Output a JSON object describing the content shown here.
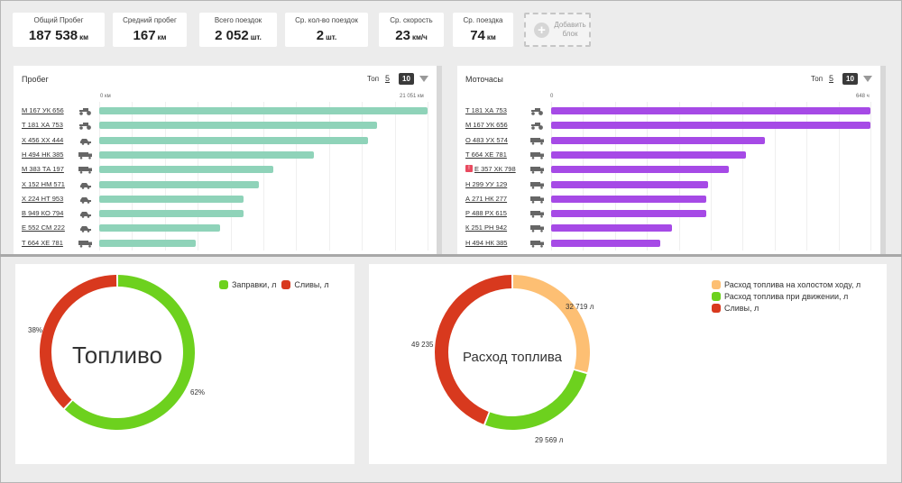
{
  "stats": [
    {
      "label": "Общий Пробег",
      "value": "187 538",
      "unit": "км"
    },
    {
      "label": "Средний пробег",
      "value": "167",
      "unit": "км"
    },
    {
      "label": "Всего поездок",
      "value": "2 052",
      "unit": "шт."
    },
    {
      "label": "Ср. кол-во поездок",
      "value": "2",
      "unit": "шт."
    },
    {
      "label": "Ср. скорость",
      "value": "23",
      "unit": "км/ч"
    },
    {
      "label": "Ср. поездка",
      "value": "74",
      "unit": "км"
    }
  ],
  "add_block": {
    "label_line1": "Добавить",
    "label_line2": "блок"
  },
  "mileage_panel": {
    "title": "Пробег",
    "top_label": "Топ",
    "top5": "5",
    "top10": "10",
    "axis_min": "0 км",
    "axis_max": "21 051 км",
    "bar_color": "#8fd3b9",
    "max": 21051,
    "rows": [
      {
        "plate": "М 167 УК 656",
        "icon": "tractor-icon",
        "value": 21051
      },
      {
        "plate": "Т 181 ХА 753",
        "icon": "tractor-icon",
        "value": 17800
      },
      {
        "plate": "Х 456 ХХ 444",
        "icon": "car-icon",
        "value": 17240
      },
      {
        "plate": "Н 494 НК 385",
        "icon": "truck-icon",
        "value": 13780
      },
      {
        "plate": "М 383 ТА 197",
        "icon": "truck-icon",
        "value": 11180
      },
      {
        "plate": "Х 152 НМ 571",
        "icon": "car-icon",
        "value": 10260
      },
      {
        "plate": "Х 224 НТ 953",
        "icon": "car-icon",
        "value": 9260
      },
      {
        "plate": "В 949 КО 794",
        "icon": "car-icon",
        "value": 9260
      },
      {
        "plate": "Е 552 СМ 222",
        "icon": "car-icon",
        "value": 7770
      },
      {
        "plate": "Т 664 ХЕ 781",
        "icon": "truck-icon",
        "value": 6200
      }
    ]
  },
  "moto_panel": {
    "title": "Моточасы",
    "top_label": "Топ",
    "top5": "5",
    "top10": "10",
    "axis_min": "0",
    "axis_max": "648 ч",
    "bar_color": "#a64ae6",
    "max": 648,
    "rows": [
      {
        "plate": "Т 181 ХА 753",
        "icon": "tractor-icon",
        "value": 648,
        "warn": false
      },
      {
        "plate": "М 167 УК 656",
        "icon": "tractor-icon",
        "value": 648,
        "warn": false
      },
      {
        "plate": "О 483 УХ 574",
        "icon": "truck-icon",
        "value": 434,
        "warn": false
      },
      {
        "plate": "Т 664 ХЕ 781",
        "icon": "truck-icon",
        "value": 396,
        "warn": false
      },
      {
        "plate": "Е 357 ХК 798",
        "icon": "truck-icon",
        "value": 360,
        "warn": true
      },
      {
        "plate": "Н 299 УУ 129",
        "icon": "truck-icon",
        "value": 318,
        "warn": false
      },
      {
        "plate": "А 271 НК 277",
        "icon": "truck-icon",
        "value": 314,
        "warn": false
      },
      {
        "plate": "Р 488 РХ 615",
        "icon": "truck-icon",
        "value": 314,
        "warn": false
      },
      {
        "plate": "К 251 РН 942",
        "icon": "truck-icon",
        "value": 245,
        "warn": false
      },
      {
        "plate": "Н 494 НК 385",
        "icon": "truck-icon",
        "value": 221,
        "warn": false
      }
    ]
  },
  "fuel_chart": {
    "center_label": "Топливо",
    "legend": [
      {
        "name": "Заправки, л",
        "color": "#6dd11e"
      },
      {
        "name": "Сливы, л",
        "color": "#d8391e"
      }
    ],
    "slices": [
      {
        "name": "Заправки, л",
        "percent": 62,
        "label": "62%",
        "color": "#6dd11e"
      },
      {
        "name": "Сливы, л",
        "percent": 38,
        "label": "38%",
        "color": "#d8391e"
      }
    ]
  },
  "consumption_chart": {
    "center_label": "Расход топлива",
    "legend": [
      {
        "name": "Расход топлива на холостом ходу, л",
        "color": "#fdbf73"
      },
      {
        "name": "Расход топлива при движении, л",
        "color": "#6dd11e"
      },
      {
        "name": "Сливы, л",
        "color": "#d8391e"
      }
    ],
    "slices": [
      {
        "name": "Расход топлива на холостом ходу, л",
        "value": 32719,
        "label": "32 719 л",
        "color": "#fdbf73"
      },
      {
        "name": "Расход топлива при движении, л",
        "value": 29569,
        "label": "29 569 л",
        "color": "#6dd11e"
      },
      {
        "name": "Сливы, л",
        "value": 49235,
        "label": "49 235",
        "color": "#d8391e"
      }
    ]
  }
}
